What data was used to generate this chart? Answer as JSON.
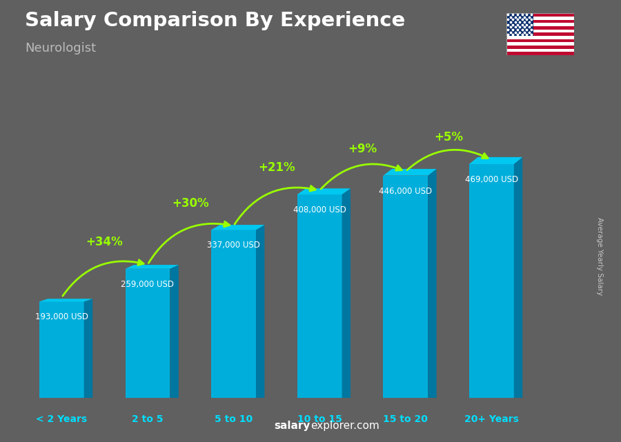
{
  "title": "Salary Comparison By Experience",
  "subtitle": "Neurologist",
  "ylabel": "Average Yearly Salary",
  "watermark": "salaryexplorer.com",
  "categories": [
    "< 2 Years",
    "2 to 5",
    "5 to 10",
    "10 to 15",
    "15 to 20",
    "20+ Years"
  ],
  "values": [
    193000,
    259000,
    337000,
    408000,
    446000,
    469000
  ],
  "labels": [
    "193,000 USD",
    "259,000 USD",
    "337,000 USD",
    "408,000 USD",
    "446,000 USD",
    "469,000 USD"
  ],
  "pct_changes": [
    "+34%",
    "+30%",
    "+21%",
    "+9%",
    "+5%"
  ],
  "col_front": "#00AEDB",
  "col_side": "#0077A0",
  "col_top": "#00C8F0",
  "bg_color": "#606060",
  "title_color": "#FFFFFF",
  "subtitle_color": "#CCCCCC",
  "label_color": "#FFFFFF",
  "pct_color": "#99FF00",
  "xtick_color": "#00DFFF",
  "ylim": [
    0,
    550000
  ]
}
